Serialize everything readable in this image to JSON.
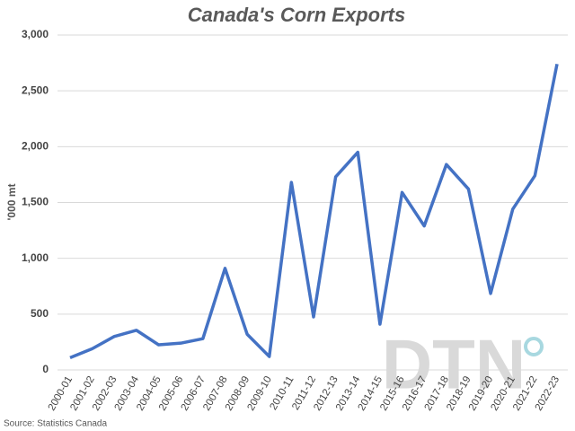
{
  "chart_data": {
    "type": "line",
    "title": "Canada's Corn Exports",
    "y_label": "'000 mt",
    "source": "Source: Statistics Canada",
    "watermark": "DTN",
    "categories": [
      "2000-01",
      "2001-02",
      "2002-03",
      "2003-04",
      "2004-05",
      "2005-06",
      "2006-07",
      "2007-08",
      "2008-09",
      "2009-10",
      "2010-11",
      "2011-12",
      "2012-13",
      "2013-14",
      "2014-15",
      "2015-16",
      "2016-17",
      "2017-18",
      "2018-19",
      "2019-20",
      "2020-21",
      "2021-22",
      "2022-23"
    ],
    "series": [
      {
        "name": "Corn exports",
        "color": "#4472c4",
        "values": [
          110,
          190,
          300,
          355,
          225,
          240,
          280,
          910,
          320,
          120,
          1680,
          475,
          1730,
          1950,
          410,
          1590,
          1290,
          1840,
          1620,
          685,
          1440,
          1740,
          2740
        ]
      }
    ],
    "ylim": [
      0,
      3000
    ],
    "yticks": [
      0,
      500,
      {
        "value": 1000,
        "label": "1,000"
      },
      {
        "value": 1500,
        "label": "1,500"
      },
      {
        "value": 2000,
        "label": "2,000"
      },
      {
        "value": 2500,
        "label": "2,500"
      },
      {
        "value": 3000,
        "label": "3,000"
      }
    ],
    "grid": true
  }
}
